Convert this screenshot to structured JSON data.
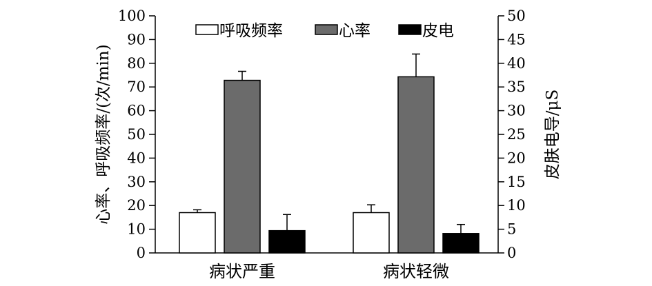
{
  "chart_data": {
    "type": "bar",
    "categories": [
      "病状严重",
      "病状轻微"
    ],
    "series": [
      {
        "name": "呼吸频率",
        "axis": "left",
        "color": "#ffffff",
        "values": [
          17,
          17
        ],
        "errors": [
          1.2,
          3.3
        ]
      },
      {
        "name": "心率",
        "axis": "left",
        "color": "#6b6b6b",
        "values": [
          72.8,
          74.3
        ],
        "errors": [
          3.8,
          9.6
        ]
      },
      {
        "name": "皮电",
        "axis": "right",
        "color": "#000000",
        "values": [
          4.7,
          4.1
        ],
        "errors": [
          3.4,
          1.9
        ]
      }
    ],
    "ylabel": "心率、呼吸频率/(次/min)",
    "y2label": "皮肤电导/μS",
    "ylim": [
      0,
      100
    ],
    "y2lim": [
      0,
      50
    ],
    "yticks": [
      "0",
      "10",
      "20",
      "30",
      "40",
      "50",
      "60",
      "70",
      "80",
      "90",
      "100"
    ],
    "y2ticks": [
      "0",
      "5",
      "10",
      "15",
      "20",
      "25",
      "30",
      "35",
      "40",
      "45",
      "50"
    ],
    "legend_position": "top",
    "grid": false
  }
}
